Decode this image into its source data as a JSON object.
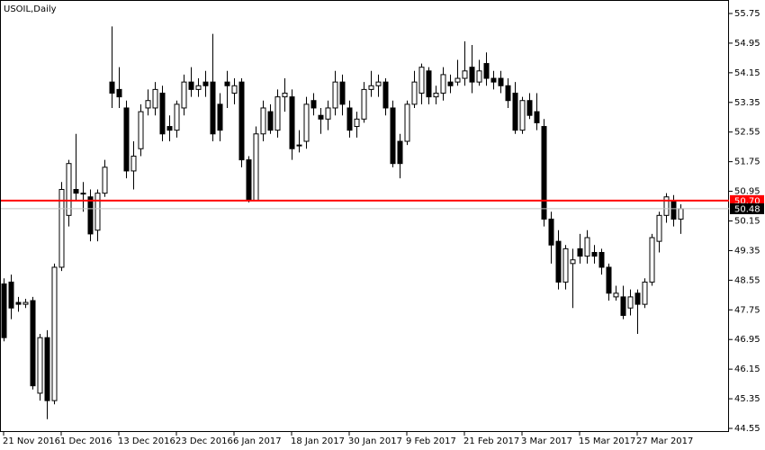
{
  "chart_data": {
    "type": "candlestick",
    "title": "USOIL,Daily",
    "categories": [
      "21 Nov 2016",
      null,
      null,
      null,
      null,
      null,
      null,
      null,
      "1 Dec 2016",
      null,
      null,
      null,
      null,
      null,
      null,
      null,
      "13 Dec 2016",
      null,
      null,
      null,
      null,
      null,
      null,
      null,
      "23 Dec 2016",
      null,
      null,
      null,
      null,
      null,
      null,
      null,
      "6 Jan 2017",
      null,
      null,
      null,
      null,
      null,
      null,
      null,
      "18 Jan 2017",
      null,
      null,
      null,
      null,
      null,
      null,
      null,
      "30 Jan 2017",
      null,
      null,
      null,
      null,
      null,
      null,
      null,
      "9 Feb 2017",
      null,
      null,
      null,
      null,
      null,
      null,
      null,
      "21 Feb 2017",
      null,
      null,
      null,
      null,
      null,
      null,
      null,
      "3 Mar 2017",
      null,
      null,
      null,
      null,
      null,
      null,
      null,
      "15 Mar 2017",
      null,
      null,
      null,
      null,
      null,
      null,
      null,
      "27 Mar 2017",
      null,
      null,
      null,
      null,
      null,
      null
    ],
    "open": [
      48.45,
      48.5,
      47.95,
      47.9,
      48.0,
      45.5,
      47.0,
      45.3,
      48.9,
      50.3,
      51.0,
      50.9,
      50.8,
      49.9,
      50.9,
      53.9,
      53.7,
      53.2,
      51.5,
      52.1,
      53.2,
      53.2,
      53.6,
      52.7,
      52.6,
      53.2,
      53.9,
      53.7,
      53.9,
      53.9,
      53.3,
      53.9,
      53.6,
      53.9,
      51.8,
      50.7,
      52.5,
      53.1,
      52.6,
      53.5,
      53.5,
      52.2,
      52.3,
      53.4,
      53.0,
      52.9,
      53.2,
      53.9,
      53.2,
      52.7,
      52.9,
      53.7,
      53.8,
      53.9,
      53.2,
      52.3,
      52.3,
      53.3,
      53.6,
      54.2,
      53.5,
      53.6,
      53.9,
      53.9,
      54.0,
      54.3,
      53.9,
      54.4,
      54.0,
      54.0,
      53.8,
      53.6,
      52.6,
      53.4,
      53.1,
      52.7,
      50.2,
      49.6,
      48.5,
      49.0,
      49.4,
      49.2,
      49.3,
      49.3,
      48.9,
      48.1,
      48.1,
      47.8,
      48.2,
      47.9,
      48.5,
      49.6,
      50.3,
      50.7,
      50.2
    ],
    "high": [
      48.6,
      48.7,
      48.1,
      48.05,
      48.1,
      47.1,
      47.2,
      49.0,
      51.2,
      51.8,
      52.5,
      51.2,
      51.0,
      51.0,
      51.8,
      55.4,
      54.3,
      53.4,
      52.3,
      53.3,
      53.7,
      53.9,
      53.8,
      53.0,
      53.4,
      54.1,
      54.3,
      54.0,
      54.2,
      55.2,
      53.6,
      54.2,
      54.0,
      54.0,
      51.9,
      52.7,
      53.4,
      53.3,
      53.7,
      54.0,
      53.7,
      52.6,
      53.5,
      53.6,
      53.2,
      53.4,
      54.2,
      54.1,
      53.4,
      53.1,
      53.9,
      54.2,
      54.1,
      54.0,
      53.4,
      52.5,
      53.4,
      54.2,
      54.4,
      54.3,
      53.8,
      54.3,
      54.1,
      54.5,
      55.0,
      54.9,
      54.5,
      54.7,
      54.2,
      54.2,
      54.0,
      53.9,
      53.5,
      53.6,
      53.6,
      52.9,
      50.4,
      49.9,
      49.5,
      49.4,
      49.8,
      49.9,
      49.5,
      49.4,
      49.0,
      48.4,
      48.4,
      48.3,
      48.3,
      48.6,
      49.8,
      50.4,
      50.9,
      50.85,
      50.6
    ],
    "low": [
      46.9,
      47.5,
      47.7,
      47.8,
      45.6,
      45.3,
      44.8,
      45.2,
      48.8,
      50.0,
      50.7,
      50.4,
      49.6,
      49.6,
      50.8,
      53.2,
      53.2,
      51.3,
      51.0,
      51.9,
      53.0,
      53.0,
      52.3,
      52.3,
      52.4,
      53.0,
      53.5,
      53.5,
      53.5,
      52.3,
      52.3,
      53.2,
      53.3,
      51.6,
      50.65,
      50.7,
      52.3,
      52.5,
      52.4,
      53.1,
      51.8,
      52.0,
      52.1,
      53.0,
      52.5,
      52.6,
      53.0,
      53.0,
      52.4,
      52.4,
      52.8,
      53.5,
      53.5,
      53.0,
      51.6,
      51.3,
      52.2,
      53.2,
      53.3,
      53.3,
      53.3,
      53.4,
      53.6,
      53.8,
      53.8,
      53.6,
      53.8,
      53.8,
      53.7,
      53.6,
      53.2,
      52.5,
      52.5,
      52.9,
      52.6,
      50.0,
      49.0,
      48.3,
      48.3,
      47.8,
      49.0,
      49.0,
      49.0,
      48.7,
      48.0,
      48.0,
      47.5,
      47.6,
      47.1,
      47.8,
      48.4,
      49.3,
      50.1,
      50.0,
      49.8
    ],
    "close": [
      47.0,
      47.8,
      47.9,
      47.95,
      45.7,
      47.0,
      45.3,
      48.9,
      51.0,
      51.7,
      50.9,
      50.9,
      49.8,
      50.9,
      51.6,
      53.6,
      53.5,
      51.5,
      51.9,
      53.1,
      53.4,
      53.7,
      52.5,
      52.6,
      53.3,
      53.9,
      53.7,
      53.8,
      53.8,
      52.5,
      52.6,
      53.8,
      53.8,
      51.8,
      50.7,
      52.5,
      53.2,
      52.6,
      53.5,
      53.6,
      52.1,
      52.2,
      53.3,
      53.2,
      52.9,
      53.2,
      53.9,
      53.3,
      52.6,
      52.9,
      53.7,
      53.8,
      53.9,
      53.2,
      51.7,
      51.7,
      53.3,
      53.9,
      54.3,
      53.5,
      53.6,
      54.1,
      53.8,
      54.0,
      54.2,
      53.9,
      54.2,
      54.0,
      53.9,
      53.8,
      53.4,
      52.6,
      53.4,
      53.0,
      52.8,
      50.2,
      49.5,
      48.5,
      49.4,
      49.1,
      49.2,
      49.7,
      49.2,
      48.9,
      48.2,
      48.2,
      47.6,
      48.1,
      47.9,
      48.5,
      49.7,
      50.3,
      50.8,
      50.2,
      50.48
    ],
    "ylim": [
      44.55,
      55.75
    ],
    "yticks": [
      55.75,
      54.95,
      54.15,
      53.35,
      52.55,
      51.75,
      50.95,
      50.15,
      49.35,
      48.55,
      47.75,
      46.95,
      46.15,
      45.35,
      44.55
    ],
    "price_lines": [
      {
        "value": 50.7,
        "label": "50.70",
        "color": "#ff0000"
      },
      {
        "value": 50.48,
        "color": "#c0c0c0"
      }
    ]
  }
}
